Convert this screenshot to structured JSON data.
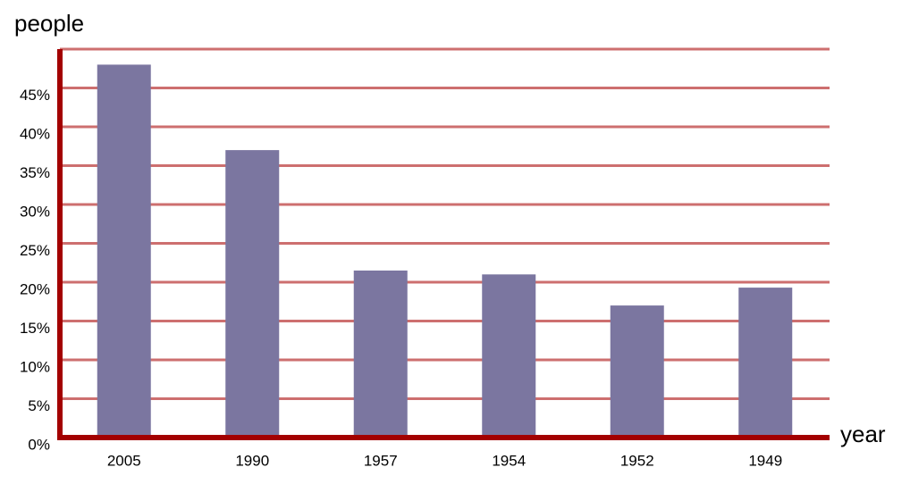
{
  "chart_data": {
    "type": "bar",
    "y_label": "people",
    "x_label": "year",
    "categories": [
      "2005",
      "1990",
      "1957",
      "1954",
      "1952",
      "1949"
    ],
    "values": [
      48,
      37,
      21.5,
      21,
      17,
      19.3
    ],
    "color": "#7b76a0",
    "ylim": [
      0,
      50
    ],
    "yticks": [
      {
        "value": 0,
        "label": "0%"
      },
      {
        "value": 5,
        "label": "5%"
      },
      {
        "value": 10,
        "label": "10%"
      },
      {
        "value": 15,
        "label": "15%"
      },
      {
        "value": 20,
        "label": "20%"
      },
      {
        "value": 25,
        "label": "25%"
      },
      {
        "value": 30,
        "label": "30%"
      },
      {
        "value": 35,
        "label": "35%"
      },
      {
        "value": 40,
        "label": "40%"
      },
      {
        "value": 45,
        "label": "45%"
      }
    ],
    "grid": true
  }
}
